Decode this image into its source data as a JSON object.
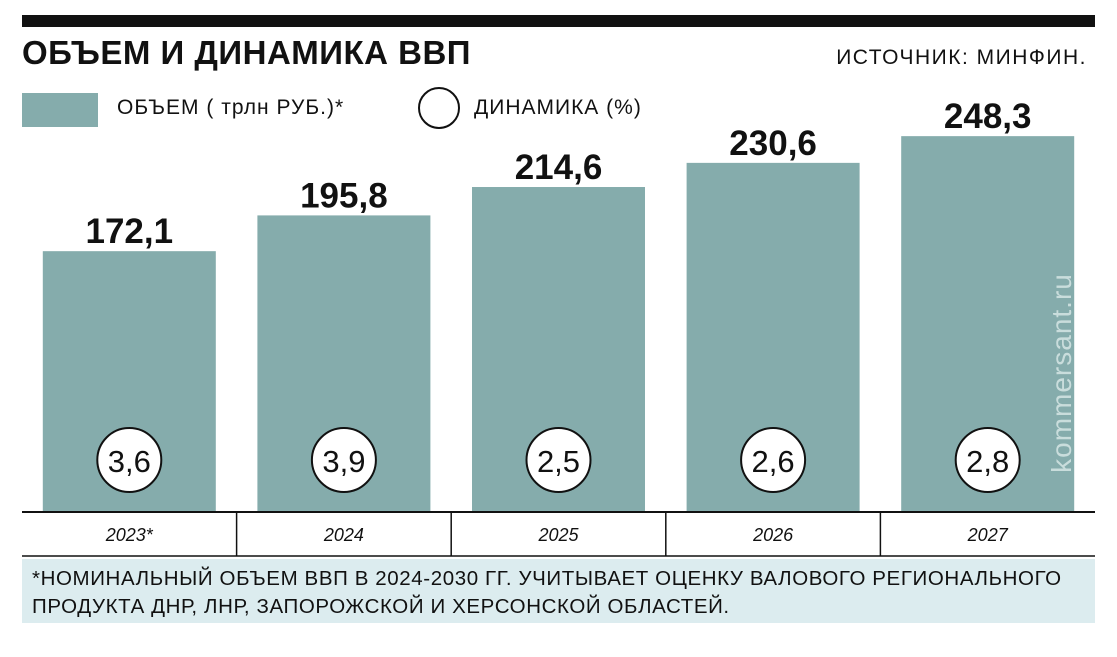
{
  "header": {
    "title": "ОБЪЕМ И ДИНАМИКА ВВП",
    "source": "ИСТОЧНИК: МИНФИН."
  },
  "legend": {
    "volume_label": "ОБЪЕМ ( трлн РУБ.)*",
    "dynamics_label": "ДИНАМИКА (%)"
  },
  "watermark": "kommersant.ru",
  "footnote": "*НОМИНАЛЬНЫЙ ОБЪЕМ ВВП В 2024-2030 ГГ. УЧИТЫВАЕТ ОЦЕНКУ ВАЛОВОГО РЕГИОНАЛЬНОГО ПРОДУКТА ДНР, ЛНР, ЗАПОРОЖСКОЙ И ХЕРСОНСКОЙ ОБЛАСТЕЙ.",
  "colors": {
    "bar": "#85acac",
    "text": "#111111",
    "note_bg": "#dcecef"
  },
  "chart_data": {
    "type": "bar",
    "categories": [
      "2023*",
      "2024",
      "2025",
      "2026",
      "2027"
    ],
    "series": [
      {
        "name": "ОБЪЕМ ( трлн РУБ.)*",
        "values": [
          172.1,
          195.8,
          214.6,
          230.6,
          248.3
        ],
        "labels": [
          "172,1",
          "195,8",
          "214,6",
          "230,6",
          "248,3"
        ]
      },
      {
        "name": "ДИНАМИКА (%)",
        "values": [
          3.6,
          3.9,
          2.5,
          2.6,
          2.8
        ],
        "labels": [
          "3,6",
          "3,9",
          "2,5",
          "2,6",
          "2,8"
        ]
      }
    ],
    "title": "ОБЪЕМ И ДИНАМИКА ВВП",
    "xlabel": "",
    "ylabel": "",
    "ylim": [
      0,
      260
    ],
    "grid": false,
    "legend": "top-left"
  }
}
